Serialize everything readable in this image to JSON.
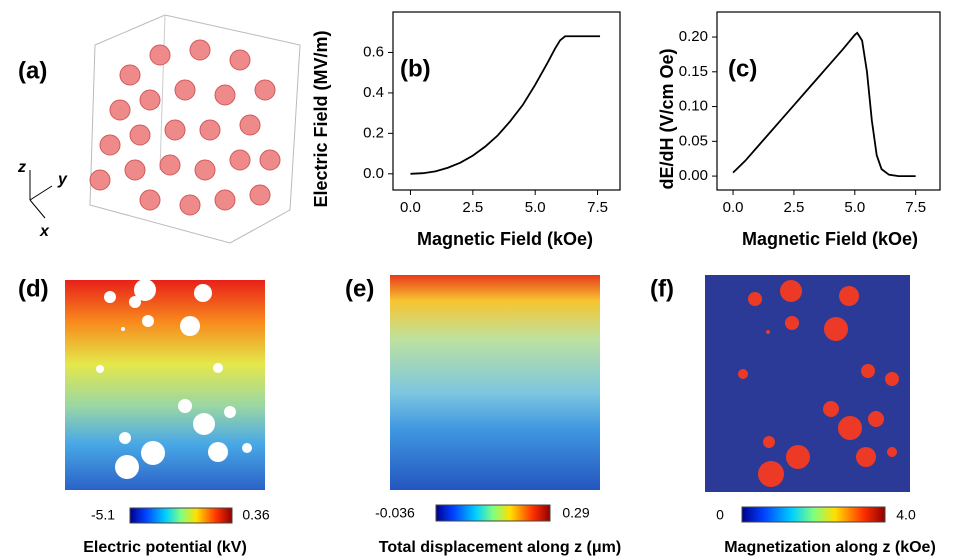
{
  "panel_a": {
    "label": "(a)",
    "axes": [
      "z",
      "y",
      "x"
    ]
  },
  "chart_data": [
    {
      "type": "line",
      "panel_label": "(b)",
      "x_label": "Magnetic Field (kOe)",
      "y_label": "Electric Field (MV/m)",
      "x": [
        0,
        0.5,
        1,
        1.5,
        2,
        2.5,
        3,
        3.5,
        4,
        4.5,
        5,
        5.5,
        5.8,
        6,
        6.2,
        7.6
      ],
      "values": [
        0,
        0.003,
        0.012,
        0.03,
        0.055,
        0.09,
        0.135,
        0.19,
        0.26,
        0.34,
        0.44,
        0.55,
        0.62,
        0.66,
        0.68,
        0.68
      ],
      "color": "#000000",
      "xlim": [
        -0.7,
        8.4
      ],
      "ylim": [
        -0.08,
        0.8
      ],
      "xticks": [
        {
          "value": 0,
          "label": "0.0"
        },
        {
          "value": 2.5,
          "label": "2.5"
        },
        {
          "value": 5,
          "label": "5.0"
        },
        {
          "value": 7.5,
          "label": "7.5"
        }
      ],
      "yticks": [
        {
          "value": 0,
          "label": "0.0"
        },
        0.2,
        0.4,
        0.6
      ]
    },
    {
      "type": "line",
      "panel_label": "(c)",
      "x_label": "Magnetic Field (kOe)",
      "y_label": "dE/dH (V/cm Oe)",
      "x": [
        0,
        0.5,
        1,
        1.5,
        2,
        2.5,
        3,
        3.5,
        4,
        4.5,
        5,
        5.1,
        5.3,
        5.5,
        5.7,
        5.9,
        6.1,
        6.4,
        6.8,
        7.5
      ],
      "values": [
        0.005,
        0.022,
        0.042,
        0.062,
        0.082,
        0.102,
        0.122,
        0.142,
        0.162,
        0.182,
        0.203,
        0.206,
        0.195,
        0.15,
        0.08,
        0.03,
        0.01,
        0.002,
        0,
        0
      ],
      "color": "#000000",
      "xlim": [
        -0.66,
        8.5
      ],
      "ylim": [
        -0.02,
        0.236
      ],
      "xticks": [
        {
          "value": 0,
          "label": "0.0"
        },
        {
          "value": 2.5,
          "label": "2.5"
        },
        {
          "value": 5,
          "label": "5.0"
        },
        {
          "value": 7.5,
          "label": "7.5"
        }
      ],
      "yticks": [
        {
          "value": 0,
          "label": "0.00"
        },
        0.05,
        {
          "value": 0.1,
          "label": "0.10"
        },
        0.15,
        {
          "value": 0.2,
          "label": "0.20"
        }
      ]
    }
  ],
  "maps": [
    {
      "label": "(d)",
      "colorbar": {
        "min": -5.1,
        "max": 0.36,
        "title": "Electric potential (kV)"
      }
    },
    {
      "label": "(e)",
      "colorbar": {
        "min": -0.036,
        "max": 0.29,
        "title": "Total displacement along z (μm)"
      }
    },
    {
      "label": "(f)",
      "colorbar": {
        "min": 0,
        "max": {
          "value": 4,
          "label": "4.0"
        },
        "title": "Magnetization along z (kOe)"
      }
    }
  ]
}
